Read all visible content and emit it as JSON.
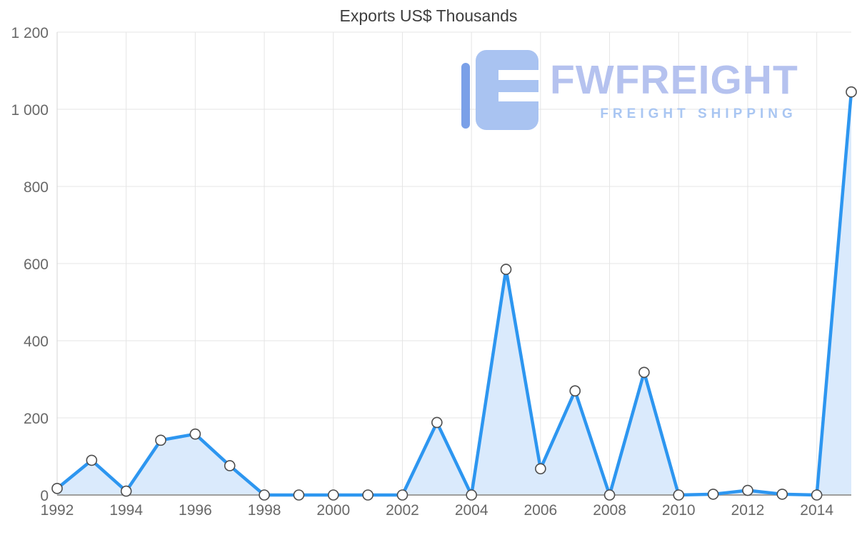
{
  "title": "Exports US$ Thousands",
  "watermark": {
    "brand": "FWFREIGHT",
    "tagline": "FREIGHT SHIPPING",
    "logo_color_main": "#a9c3f1",
    "logo_color_bar": "#7aa0e8"
  },
  "chart_data": {
    "type": "area",
    "title": "Exports US$ Thousands",
    "x": [
      1992,
      1993,
      1994,
      1995,
      1996,
      1997,
      1998,
      1999,
      2000,
      2001,
      2002,
      2003,
      2004,
      2005,
      2006,
      2007,
      2008,
      2009,
      2010,
      2011,
      2012,
      2013,
      2014,
      2015
    ],
    "values": [
      17,
      90,
      10,
      142,
      158,
      76,
      0,
      0,
      0,
      0,
      0,
      188,
      0,
      585,
      68,
      270,
      0,
      318,
      0,
      2,
      12,
      2,
      0,
      1045
    ],
    "ylim": [
      0,
      1200
    ],
    "yticks": [
      {
        "value": 0,
        "label": "0"
      },
      {
        "value": 200,
        "label": "200"
      },
      {
        "value": 400,
        "label": "400"
      },
      {
        "value": 600,
        "label": "600"
      },
      {
        "value": 800,
        "label": "800"
      },
      {
        "value": 1000,
        "label": "1 000"
      },
      {
        "value": 1200,
        "label": "1 200"
      }
    ],
    "xticks": [
      1992,
      1994,
      1996,
      1998,
      2000,
      2002,
      2004,
      2006,
      2008,
      2010,
      2012,
      2014
    ],
    "grid": true,
    "legend": "none",
    "line_color": "#2d96f0",
    "fill_color": "#daeafc",
    "grid_color": "#e5e5e5",
    "axis_color": "#9e9e9e",
    "marker": {
      "fill": "#ffffff",
      "stroke": "#4d4d4d"
    }
  }
}
